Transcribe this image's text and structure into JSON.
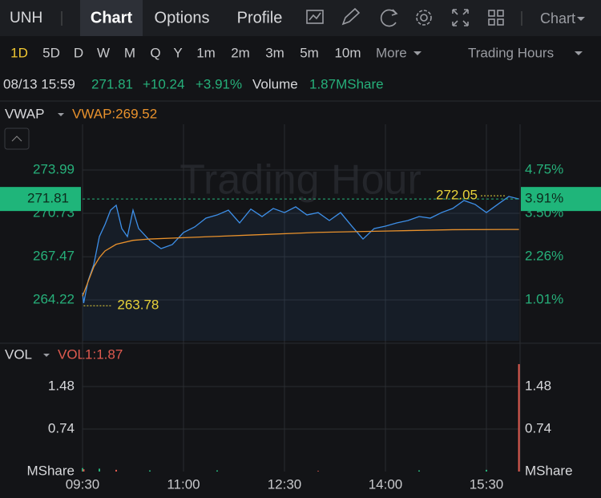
{
  "toolbar": {
    "symbol": "UNH",
    "tabs": [
      "Chart",
      "Options",
      "Profile"
    ],
    "chart_menu": "Chart"
  },
  "periods": {
    "items": [
      "1D",
      "5D",
      "D",
      "W",
      "M",
      "Q",
      "Y",
      "1m",
      "2m",
      "3m",
      "5m",
      "10m"
    ],
    "more": "More",
    "session": "Trading Hours"
  },
  "quote": {
    "time": "08/13 15:59",
    "price": "271.81",
    "change": "+10.24",
    "change_pct": "+3.91%",
    "volume_label": "Volume",
    "volume": "1.87MShare"
  },
  "time_axis": {
    "xlim": [
      "09:30",
      "16:00"
    ],
    "xticks": [
      "09:30",
      "11:00",
      "12:30",
      "14:00",
      "15:30"
    ]
  },
  "price_chart": {
    "indicator": "VWAP",
    "indicator_value": "VWAP:269.52",
    "watermark": "Trading Hour",
    "ylim": [
      261.14,
      277.43
    ],
    "yticks": [
      264.22,
      267.47,
      270.73,
      273.99
    ],
    "y2lim": [
      -0.17,
      6.07
    ],
    "y2ticks": [
      {
        "value": 1.01,
        "label": "1.01%"
      },
      {
        "value": 2.26,
        "label": "2.26%"
      },
      {
        "value": 3.5,
        "label": "3.50%"
      },
      {
        "value": 4.75,
        "label": "4.75%"
      }
    ],
    "price": {
      "color": "#3d8fe8",
      "x": [
        "09:30",
        "09:31",
        "09:35",
        "09:40",
        "09:45",
        "09:50",
        "09:55",
        "10:00",
        "10:05",
        "10:10",
        "10:15",
        "10:20",
        "10:30",
        "10:40",
        "10:50",
        "11:00",
        "11:10",
        "11:20",
        "11:30",
        "11:40",
        "11:50",
        "12:00",
        "12:10",
        "12:20",
        "12:30",
        "12:40",
        "12:50",
        "13:00",
        "13:10",
        "13:20",
        "13:30",
        "13:40",
        "13:50",
        "14:00",
        "14:10",
        "14:20",
        "14:30",
        "14:40",
        "14:50",
        "15:00",
        "15:10",
        "15:20",
        "15:30",
        "15:40",
        "15:50",
        "15:59"
      ],
      "values": [
        264.76,
        263.98,
        265.67,
        266.87,
        268.98,
        269.89,
        270.97,
        271.34,
        269.59,
        268.98,
        270.97,
        269.59,
        268.68,
        268.08,
        268.38,
        269.29,
        269.71,
        270.37,
        270.61,
        270.97,
        270.01,
        271.05,
        270.49,
        271.1,
        270.79,
        271.22,
        270.61,
        270.79,
        270.19,
        270.79,
        269.77,
        268.8,
        269.59,
        269.77,
        270.01,
        270.19,
        270.49,
        270.37,
        270.79,
        271.1,
        271.7,
        271.4,
        270.79,
        271.4,
        272.0,
        271.81
      ]
    },
    "vwap": {
      "color": "#e8912c",
      "x": [
        "09:30",
        "09:35",
        "09:40",
        "09:45",
        "09:50",
        "10:00",
        "10:15",
        "10:30",
        "11:00",
        "11:30",
        "12:00",
        "13:00",
        "14:00",
        "15:00",
        "15:59"
      ],
      "values": [
        264.5,
        265.6,
        266.7,
        267.4,
        267.9,
        268.4,
        268.7,
        268.8,
        268.9,
        269.0,
        269.1,
        269.3,
        269.4,
        269.5,
        269.52
      ]
    },
    "last": 271.81,
    "last_pct": {
      "value": 3.91,
      "label": "3.91%"
    },
    "high": {
      "x": "15:25",
      "value": 272.05
    },
    "low": {
      "x": "09:31",
      "value": 263.78
    }
  },
  "volume_chart": {
    "indicator": "VOL",
    "indicator_value": "VOL1:1.87",
    "ylim": [
      0,
      1.857
    ],
    "yticks": [
      {
        "value": 0,
        "label": "MShare"
      },
      0.74,
      1.48
    ],
    "x": [
      "09:30",
      "09:31",
      "09:45",
      "10:00",
      "10:30",
      "11:30",
      "13:00",
      "14:30",
      "15:30",
      "15:59"
    ],
    "values": [
      0.06,
      0.04,
      0.05,
      0.03,
      0.02,
      0.02,
      0.01,
      0.02,
      0.03,
      1.87
    ],
    "colors": [
      "#26b07a",
      "#e05a4f",
      "#26b07a",
      "#e05a4f",
      "#26b07a",
      "#26b07a",
      "#e05a4f",
      "#26b07a",
      "#26b07a",
      "#e05a4f"
    ]
  }
}
